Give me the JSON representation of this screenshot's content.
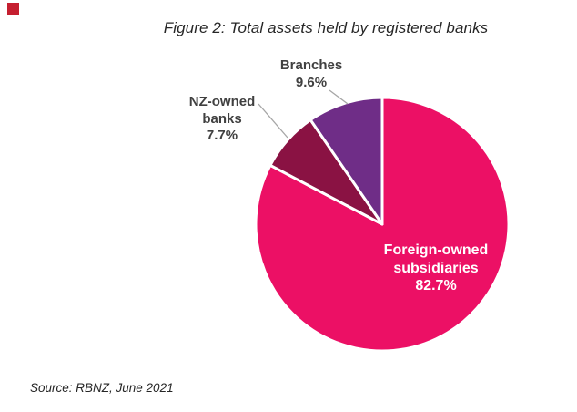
{
  "page": {
    "title": "Figure 2: Total assets held by registered banks",
    "source": "Source: RBNZ, June 2021"
  },
  "theme": {
    "background": "#FFFFFF",
    "title_color": "#262626",
    "label_color": "#404040",
    "inside_label_color": "#FFFFFF",
    "leader_line_color": "#A6A6A6",
    "marker_color": "#C51F30"
  },
  "chart_data": {
    "type": "pie",
    "title": "Figure 2: Total assets held by registered banks",
    "source": "Source: RBNZ, June 2021",
    "start_angle_deg": 0,
    "direction": "clockwise",
    "legend": "none",
    "labels_on_chart": true,
    "slices": [
      {
        "id": "foreign-owned-subsidiaries",
        "label": "Foreign-owned subsidiaries",
        "label_lines": [
          "Foreign-owned",
          "subsidiaries"
        ],
        "value": 82.7,
        "pct_label": "82.7%",
        "color": "#EC1065",
        "label_position": "inside"
      },
      {
        "id": "nz-owned-banks",
        "label": "NZ-owned banks",
        "label_lines": [
          "NZ-owned",
          "banks"
        ],
        "value": 7.7,
        "pct_label": "7.7%",
        "color": "#8A1243",
        "label_position": "outside-left"
      },
      {
        "id": "branches",
        "label": "Branches",
        "label_lines": [
          "Branches"
        ],
        "value": 9.6,
        "pct_label": "9.6%",
        "color": "#6F2D87",
        "label_position": "outside-top"
      }
    ]
  }
}
